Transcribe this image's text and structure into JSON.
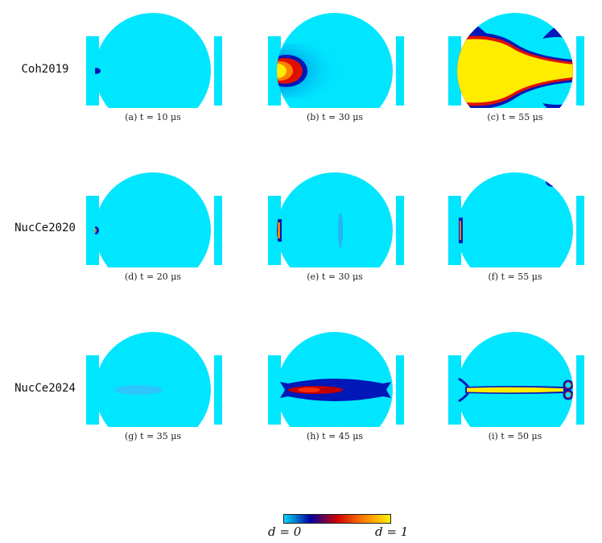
{
  "rows": [
    {
      "label": "Coh2019"
    },
    {
      "label": "NucCe2020"
    },
    {
      "label": "NucCe2024"
    }
  ],
  "panels": [
    {
      "caption": "(a) t = 10 μs"
    },
    {
      "caption": "(b) t = 30 μs"
    },
    {
      "caption": "(c) t = 55 μs"
    },
    {
      "caption": "(d) t = 20 μs"
    },
    {
      "caption": "(e) t = 30 μs"
    },
    {
      "caption": "(f) t = 55 μs"
    },
    {
      "caption": "(g) t = 35 μs"
    },
    {
      "caption": "(h) t = 45 μs"
    },
    {
      "caption": "(i) t = 50 μs"
    }
  ],
  "colorbar": {
    "min_label": "d = 0",
    "max_label": "d = 1",
    "colors": [
      "#00d8f8",
      "#0000a0",
      "#d00000",
      "#ff8000",
      "#fff000"
    ]
  },
  "colors": {
    "background_field": "#00e6ff",
    "damage_blue": "#0018b8",
    "damage_red": "#e01000",
    "damage_yellow": "#ffec00"
  }
}
